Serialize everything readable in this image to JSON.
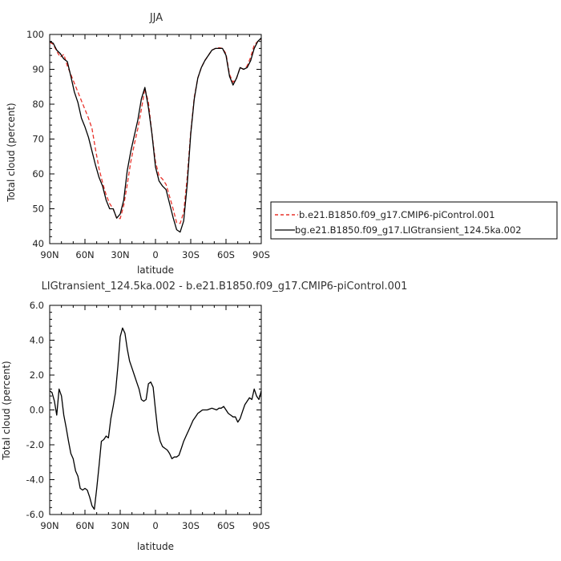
{
  "chart_data": [
    {
      "type": "line",
      "title": "JJA",
      "xlabel": "latitude",
      "ylabel": "Total cloud (percent)",
      "xlim": [
        90,
        -90
      ],
      "ylim": [
        40,
        100
      ],
      "xticks": [
        90,
        60,
        30,
        0,
        -30,
        -60,
        -90
      ],
      "xtick_labels": [
        "90N",
        "60N",
        "30N",
        "0",
        "30S",
        "60S",
        "90S"
      ],
      "yticks": [
        40,
        50,
        60,
        70,
        80,
        90,
        100
      ],
      "ytick_labels": [
        "40",
        "50",
        "60",
        "70",
        "80",
        "90",
        "100"
      ],
      "legend_position": "right",
      "series": [
        {
          "name": "b.e21.B1850.f09_g17.CMIP6-piControl.001",
          "color": "#e8322a",
          "dash": "dashed",
          "x": [
            90,
            87,
            84,
            81,
            78,
            75,
            72,
            69,
            66,
            63,
            60,
            57,
            54,
            51,
            48,
            45,
            42,
            39,
            36,
            33,
            30,
            27,
            24,
            21,
            18,
            15,
            12,
            9,
            6,
            3,
            0,
            -3,
            -6,
            -9,
            -12,
            -15,
            -18,
            -21,
            -24,
            -27,
            -30,
            -33,
            -36,
            -39,
            -42,
            -45,
            -48,
            -51,
            -54,
            -57,
            -60,
            -63,
            -66,
            -69,
            -72,
            -75,
            -78,
            -81,
            -84,
            -87,
            -90
          ],
          "values": [
            97.8,
            97.2,
            95.2,
            93.5,
            94.3,
            91.0,
            88.5,
            86.0,
            83.5,
            81.0,
            78.5,
            76.0,
            73.0,
            67.0,
            61.5,
            57.5,
            54.0,
            51.5,
            50.0,
            47.3,
            47.2,
            51.0,
            57.0,
            63.5,
            68.5,
            73.0,
            78.5,
            84.5,
            80.5,
            71.5,
            63.5,
            59.5,
            58.5,
            57.0,
            53.5,
            50.0,
            46.0,
            45.8,
            49.0,
            59.0,
            72.0,
            82.0,
            87.5,
            90.5,
            92.5,
            94.0,
            95.5,
            96.0,
            96.2,
            96.0,
            94.5,
            88.5,
            86.3,
            87.5,
            90.5,
            90.0,
            91.0,
            93.5,
            97.0,
            98.0,
            98.5
          ]
        },
        {
          "name": "bg.e21.B1850.f09_g17.LIGtransient_124.5ka.002",
          "color": "#000000",
          "dash": "solid",
          "x": [
            90,
            87,
            84,
            81,
            78,
            75,
            72,
            69,
            66,
            63,
            60,
            57,
            54,
            51,
            48,
            45,
            42,
            39,
            36,
            33,
            30,
            27,
            24,
            21,
            18,
            15,
            12,
            9,
            6,
            3,
            0,
            -3,
            -6,
            -9,
            -12,
            -15,
            -18,
            -21,
            -24,
            -27,
            -30,
            -33,
            -36,
            -39,
            -42,
            -45,
            -48,
            -51,
            -54,
            -57,
            -60,
            -63,
            -66,
            -69,
            -72,
            -75,
            -78,
            -81,
            -84,
            -87,
            -90
          ],
          "values": [
            98.0,
            97.5,
            95.5,
            94.5,
            93.0,
            92.2,
            88.0,
            83.5,
            80.5,
            76.0,
            73.5,
            70.5,
            66.5,
            62.5,
            59.0,
            56.5,
            52.5,
            50.0,
            50.0,
            47.3,
            48.5,
            52.5,
            61.0,
            66.5,
            71.0,
            75.5,
            81.5,
            84.8,
            79.0,
            71.5,
            62.0,
            58.0,
            56.5,
            55.5,
            51.5,
            47.5,
            44.0,
            43.3,
            46.5,
            57.0,
            71.5,
            81.5,
            87.5,
            90.5,
            92.5,
            94.0,
            95.5,
            96.0,
            96.0,
            96.0,
            94.0,
            88.0,
            85.5,
            87.5,
            90.5,
            90.0,
            90.5,
            92.5,
            96.0,
            98.0,
            99.0
          ]
        }
      ]
    },
    {
      "type": "line",
      "title": "LIGtransient_124.5ka.002 - b.e21.B1850.f09_g17.CMIP6-piControl.001",
      "xlabel": "latitude",
      "ylabel": "Total cloud (percent)",
      "xlim": [
        90,
        -90
      ],
      "ylim": [
        -6,
        6
      ],
      "xticks": [
        90,
        60,
        30,
        0,
        -30,
        -60,
        -90
      ],
      "xtick_labels": [
        "90N",
        "60N",
        "30N",
        "0",
        "30S",
        "60S",
        "90S"
      ],
      "yticks": [
        -6,
        -4,
        -2,
        0,
        2,
        4,
        6
      ],
      "ytick_labels": [
        "-6.0",
        "-4.0",
        "-2.0",
        "0.0",
        "2.0",
        "4.0",
        "6.0"
      ],
      "series": [
        {
          "color": "#000000",
          "dash": "solid",
          "x": [
            90,
            88,
            86,
            84,
            82,
            80,
            78,
            76,
            74,
            72,
            70,
            68,
            66,
            64,
            62,
            60,
            58,
            56,
            54,
            52,
            50,
            48,
            46,
            44,
            42,
            40,
            38,
            36,
            34,
            32,
            30,
            28,
            26,
            24,
            22,
            20,
            18,
            16,
            14,
            12,
            10,
            8,
            6,
            4,
            2,
            0,
            -2,
            -4,
            -6,
            -8,
            -10,
            -12,
            -14,
            -16,
            -18,
            -20,
            -22,
            -24,
            -26,
            -28,
            -30,
            -32,
            -34,
            -36,
            -38,
            -40,
            -42,
            -44,
            -46,
            -48,
            -50,
            -52,
            -54,
            -56,
            -58,
            -60,
            -62,
            -64,
            -66,
            -68,
            -70,
            -72,
            -74,
            -76,
            -78,
            -80,
            -82,
            -84,
            -86,
            -88,
            -90
          ],
          "values": [
            1.1,
            1.0,
            0.5,
            -0.3,
            1.2,
            0.8,
            -0.3,
            -1.0,
            -1.8,
            -2.5,
            -2.8,
            -3.5,
            -3.8,
            -4.5,
            -4.6,
            -4.5,
            -4.6,
            -5.0,
            -5.5,
            -5.7,
            -4.5,
            -3.2,
            -1.8,
            -1.7,
            -1.5,
            -1.6,
            -0.5,
            0.2,
            1.0,
            2.5,
            4.2,
            4.7,
            4.4,
            3.5,
            2.8,
            2.4,
            2.0,
            1.6,
            1.2,
            0.6,
            0.5,
            0.6,
            1.5,
            1.6,
            1.3,
            0.0,
            -1.2,
            -1.8,
            -2.1,
            -2.2,
            -2.3,
            -2.5,
            -2.8,
            -2.7,
            -2.7,
            -2.6,
            -2.2,
            -1.8,
            -1.5,
            -1.2,
            -0.9,
            -0.6,
            -0.4,
            -0.2,
            -0.1,
            0.0,
            0.0,
            0.0,
            0.05,
            0.1,
            0.05,
            0.0,
            0.1,
            0.1,
            0.2,
            0.0,
            -0.2,
            -0.3,
            -0.4,
            -0.4,
            -0.7,
            -0.5,
            -0.1,
            0.3,
            0.5,
            0.7,
            0.6,
            1.2,
            0.8,
            0.6,
            1.1
          ]
        }
      ]
    }
  ]
}
